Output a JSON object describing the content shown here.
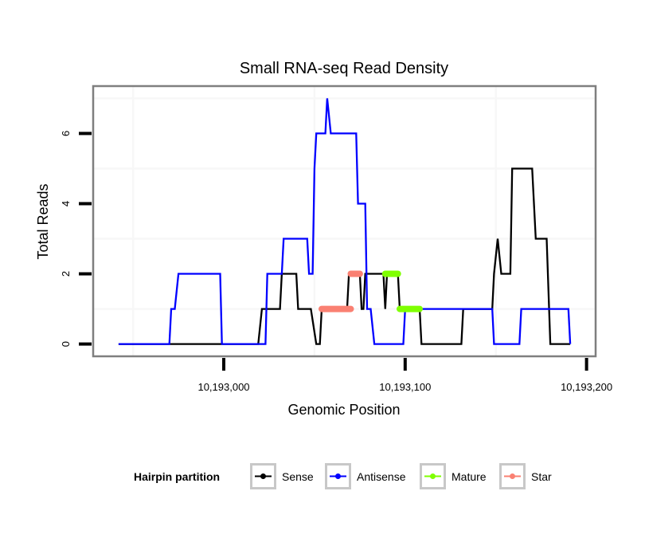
{
  "chart_data": {
    "type": "line",
    "title": "Small RNA-seq Read Density",
    "xlabel": "Genomic Position",
    "ylabel": "Total Reads",
    "xlim": [
      10192928,
      10193205
    ],
    "ylim": [
      -0.35,
      7.35
    ],
    "x_ticks": [
      10193000,
      10193100,
      10193200
    ],
    "x_tick_labels": [
      "10,193,000",
      "10,193,100",
      "10,193,200"
    ],
    "y_ticks": [
      0,
      2,
      4,
      6
    ],
    "y_tick_labels": [
      "0",
      "2",
      "4",
      "6"
    ],
    "grid": true,
    "legend": {
      "title": "Hairpin partition",
      "position": "bottom",
      "entries": [
        {
          "name": "Sense",
          "color": "#000000"
        },
        {
          "name": "Antisense",
          "color": "#0000ff"
        },
        {
          "name": "Mature",
          "color": "#7fff00"
        },
        {
          "name": "Star",
          "color": "#fa8072"
        }
      ]
    },
    "series": [
      {
        "name": "Sense",
        "color": "#000000",
        "points": [
          [
            10192942,
            0
          ],
          [
            10193019,
            0
          ],
          [
            10193021,
            1
          ],
          [
            10193031,
            1
          ],
          [
            10193032,
            2
          ],
          [
            10193040,
            2
          ],
          [
            10193041,
            1
          ],
          [
            10193048,
            1
          ],
          [
            10193051,
            0
          ],
          [
            10193053,
            0
          ],
          [
            10193054,
            1
          ],
          [
            10193068,
            1
          ],
          [
            10193069,
            2
          ],
          [
            10193075,
            2
          ],
          [
            10193076,
            1
          ],
          [
            10193077,
            1
          ],
          [
            10193078,
            2
          ],
          [
            10193088,
            2
          ],
          [
            10193089,
            1
          ],
          [
            10193090,
            2
          ],
          [
            10193096,
            2
          ],
          [
            10193097,
            1
          ],
          [
            10193108,
            1
          ],
          [
            10193109,
            0
          ],
          [
            10193131,
            0
          ],
          [
            10193132,
            1
          ],
          [
            10193148,
            1
          ],
          [
            10193149,
            2
          ],
          [
            10193151,
            3
          ],
          [
            10193153,
            2
          ],
          [
            10193158,
            2
          ],
          [
            10193159,
            5
          ],
          [
            10193170,
            5
          ],
          [
            10193172,
            3
          ],
          [
            10193178,
            3
          ],
          [
            10193180,
            0
          ],
          [
            10193191,
            0
          ]
        ]
      },
      {
        "name": "Antisense",
        "color": "#0000ff",
        "points": [
          [
            10192942,
            0
          ],
          [
            10192970,
            0
          ],
          [
            10192971,
            1
          ],
          [
            10192973,
            1
          ],
          [
            10192975,
            2
          ],
          [
            10192998,
            2
          ],
          [
            10192999,
            0
          ],
          [
            10193023,
            0
          ],
          [
            10193024,
            2
          ],
          [
            10193032,
            2
          ],
          [
            10193033,
            3
          ],
          [
            10193046,
            3
          ],
          [
            10193047,
            2
          ],
          [
            10193049,
            2
          ],
          [
            10193050,
            5
          ],
          [
            10193051,
            6
          ],
          [
            10193056,
            6
          ],
          [
            10193057,
            7
          ],
          [
            10193059,
            6
          ],
          [
            10193073,
            6
          ],
          [
            10193074,
            4
          ],
          [
            10193078,
            4
          ],
          [
            10193079,
            1
          ],
          [
            10193081,
            1
          ],
          [
            10193083,
            0
          ],
          [
            10193099,
            0
          ],
          [
            10193100,
            1
          ],
          [
            10193148,
            1
          ],
          [
            10193149,
            0
          ],
          [
            10193163,
            0
          ],
          [
            10193164,
            1
          ],
          [
            10193190,
            1
          ],
          [
            10193191,
            0
          ]
        ]
      },
      {
        "name": "Mature",
        "color": "#7fff00",
        "points": [
          [
            10193089,
            2
          ],
          [
            10193096,
            2
          ],
          null,
          [
            10193097,
            1
          ],
          [
            10193108,
            1
          ]
        ]
      },
      {
        "name": "Star",
        "color": "#fa8072",
        "points": [
          [
            10193054,
            1
          ],
          [
            10193070,
            1
          ],
          null,
          [
            10193070,
            2
          ],
          [
            10193075,
            2
          ]
        ]
      }
    ]
  }
}
